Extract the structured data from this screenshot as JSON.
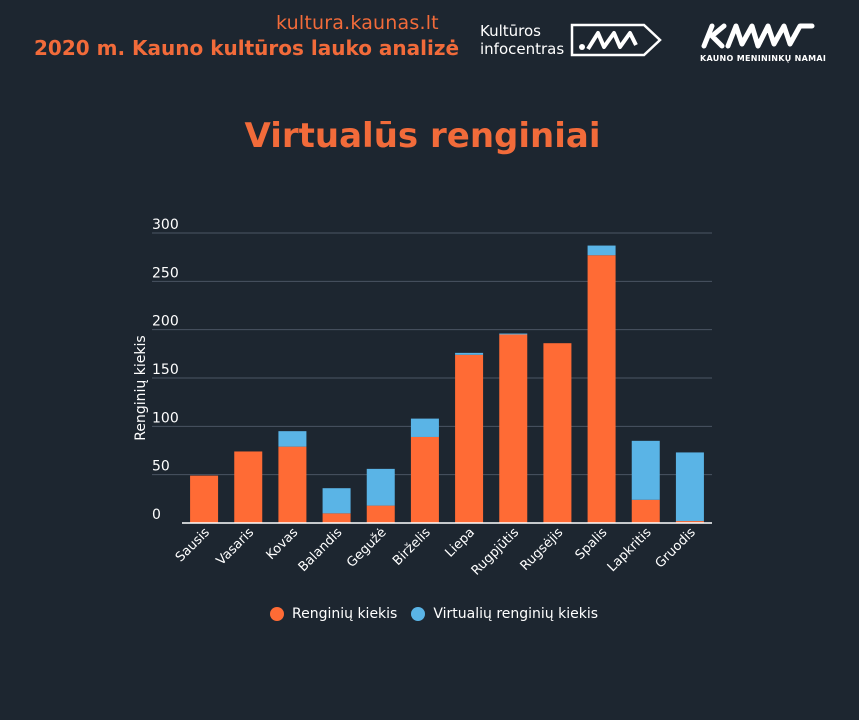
{
  "header": {
    "site_url": "kultura.kaunas.lt",
    "report_title": "2020 m. Kauno kultūros lauko analizė",
    "logo_infocentras": {
      "line1": "Kultūros",
      "line2": "infocentras"
    },
    "logo_kmn": {
      "subtitle": "KAUNO MENININKŲ NAMAI"
    }
  },
  "colors": {
    "background": "#1d2630",
    "accent": "#f26b3a",
    "series_events": "#ff6b35",
    "series_virtual": "#5ab4e6",
    "grid": "#4a5563"
  },
  "chart_data": {
    "type": "bar",
    "stacked": true,
    "title": "Virtualūs renginiai",
    "ylabel": "Renginių kiekis",
    "xlabel": "",
    "ylim": [
      0,
      300
    ],
    "yticks": [
      0,
      50,
      100,
      150,
      200,
      250,
      300
    ],
    "grid": true,
    "legend_position": "bottom",
    "categories": [
      "Sausis",
      "Vasaris",
      "Kovas",
      "Balandis",
      "Gegužė",
      "Birželis",
      "Liepa",
      "Rugpjūtis",
      "Rugsėjis",
      "Spalis",
      "Lapkritis",
      "Gruodis"
    ],
    "series": [
      {
        "name": "Renginių kiekis",
        "values": [
          49,
          74,
          79,
          10,
          18,
          89,
          174,
          195,
          186,
          277,
          24,
          2
        ]
      },
      {
        "name": "Virtualių renginių kiekis",
        "values": [
          0,
          0,
          16,
          26,
          38,
          19,
          2,
          1,
          0,
          10,
          61,
          71
        ]
      }
    ]
  }
}
